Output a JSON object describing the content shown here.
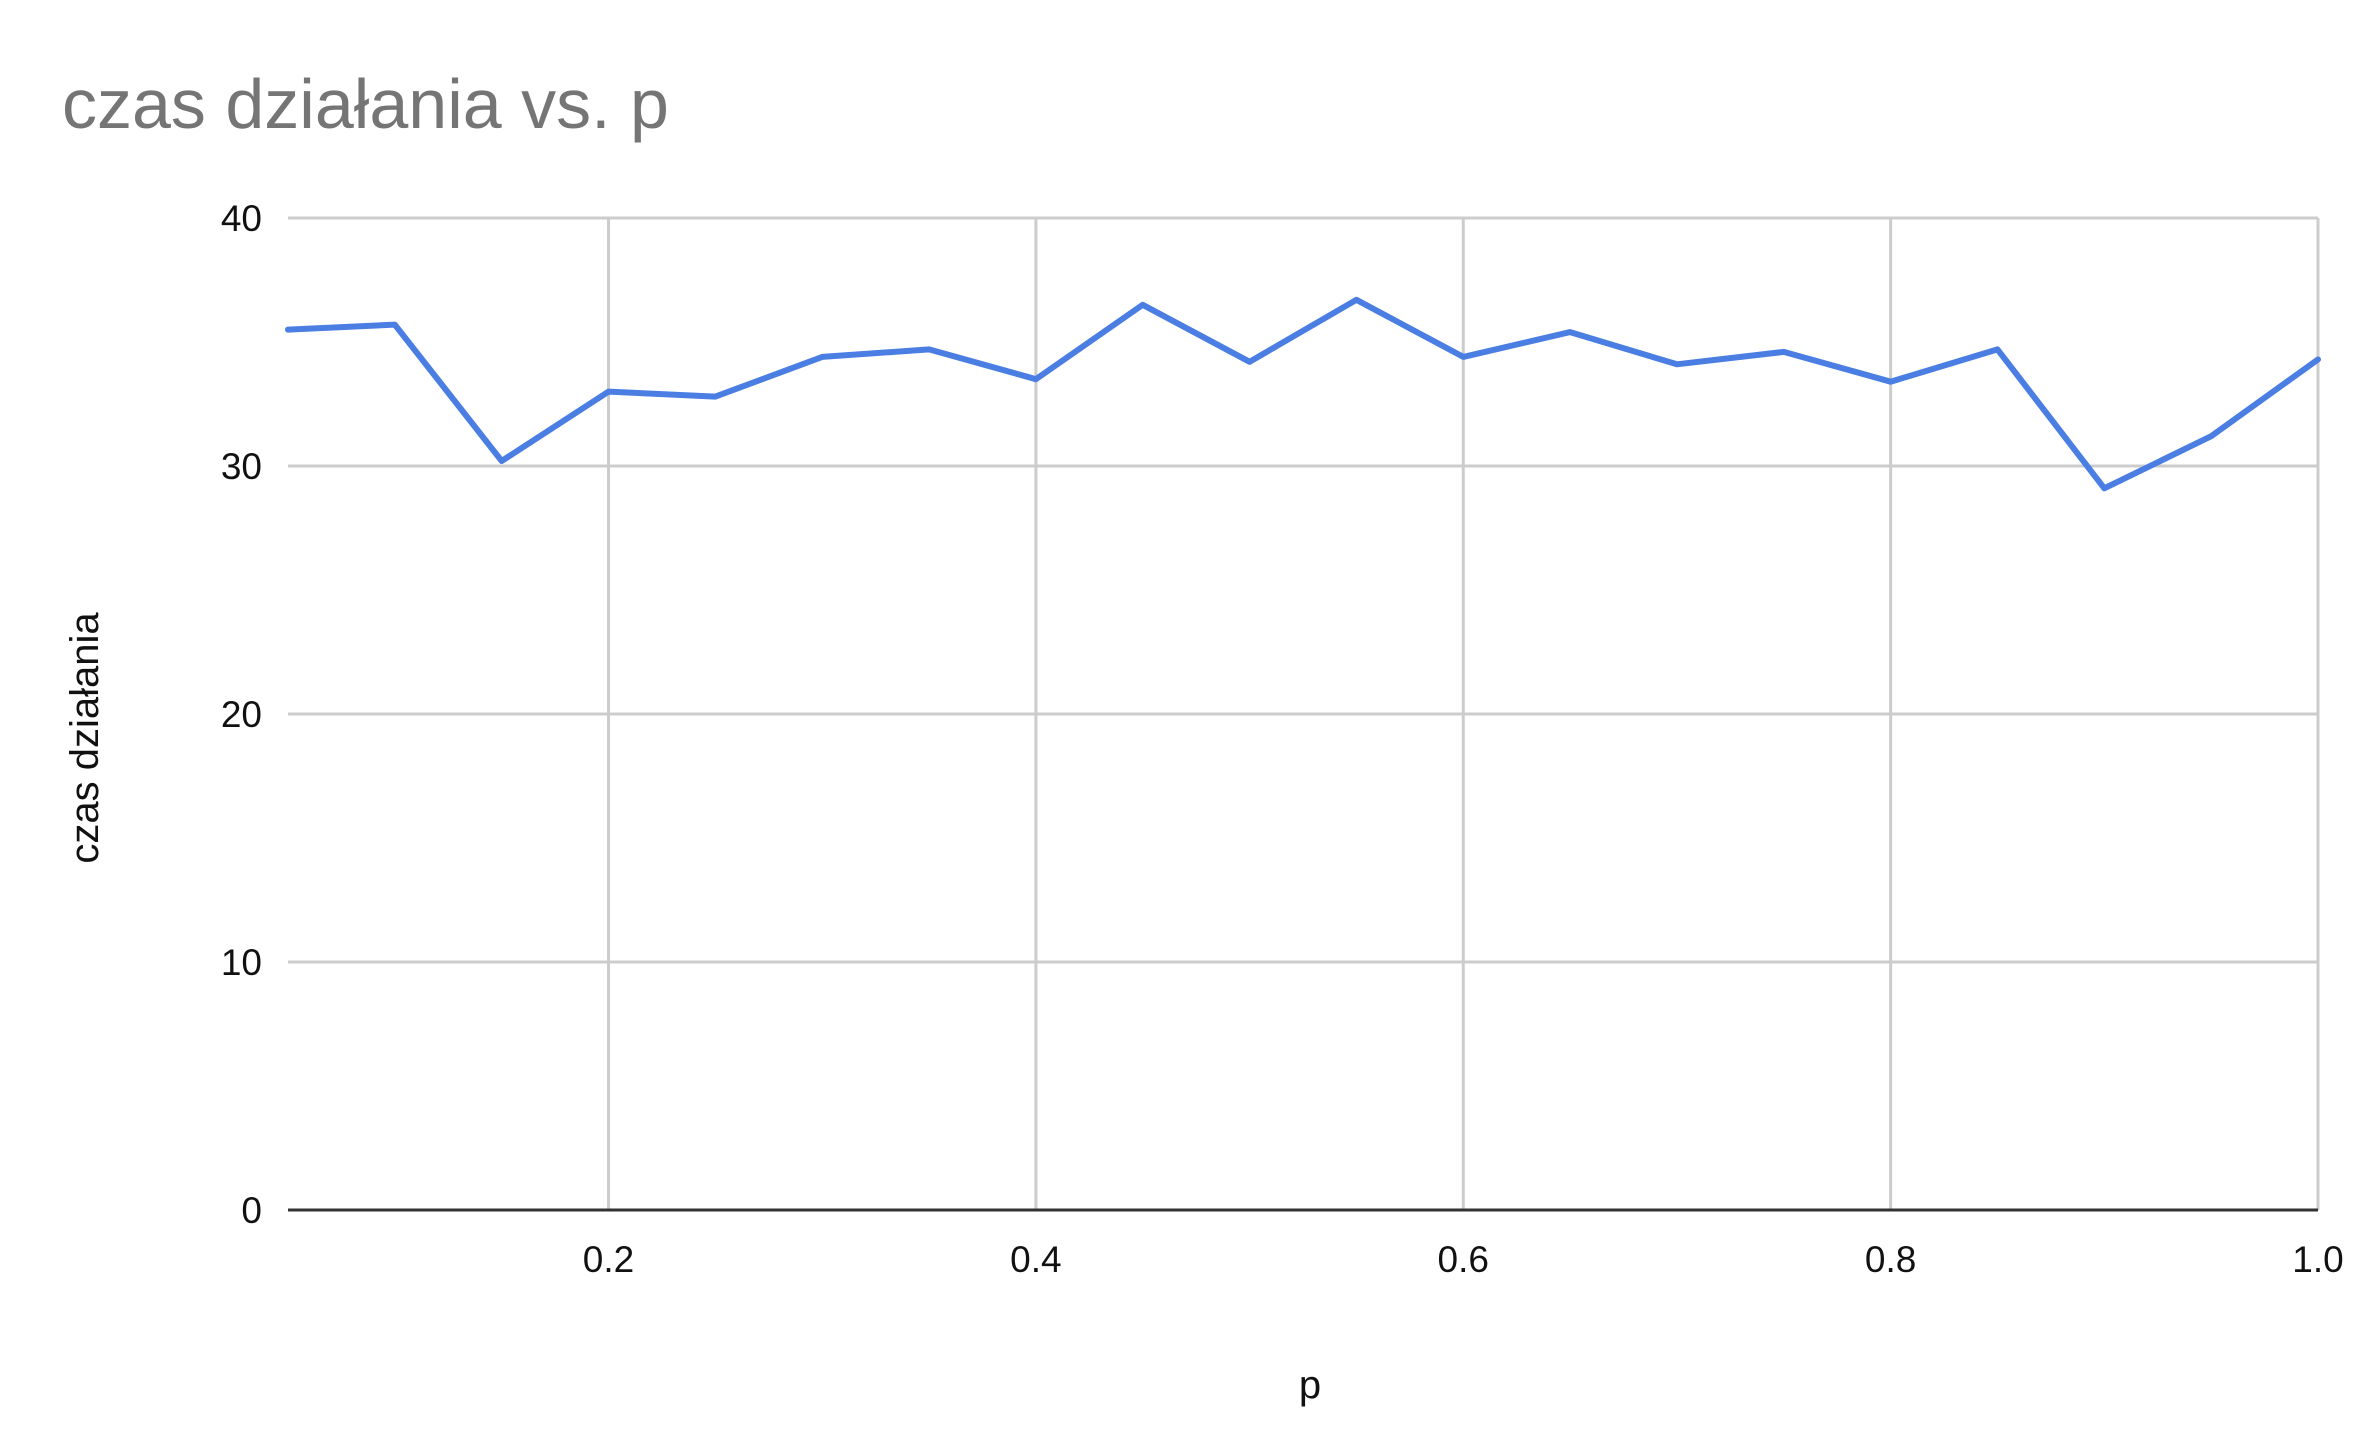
{
  "chart_data": {
    "type": "line",
    "title": "czas działania vs. p",
    "xlabel": "p",
    "ylabel": "czas działania",
    "xlim": [
      0.05,
      1.0
    ],
    "ylim": [
      0,
      40
    ],
    "x_ticks": [
      0.2,
      0.4,
      0.6,
      0.8,
      1.0
    ],
    "x_tick_labels": [
      "0.2",
      "0.4",
      "0.6",
      "0.8",
      "1.0"
    ],
    "y_ticks": [
      0,
      10,
      20,
      30,
      40
    ],
    "y_tick_labels": [
      "0",
      "10",
      "20",
      "30",
      "40"
    ],
    "grid": true,
    "legend": "none",
    "series": [
      {
        "color": "#4a7ee3",
        "x": [
          0.05,
          0.1,
          0.15,
          0.2,
          0.25,
          0.3,
          0.35,
          0.4,
          0.45,
          0.5,
          0.55,
          0.6,
          0.65,
          0.7,
          0.75,
          0.8,
          0.85,
          0.9,
          0.95,
          1.0
        ],
        "y": [
          35.5,
          35.7,
          30.2,
          33.0,
          32.8,
          34.4,
          34.7,
          33.5,
          36.5,
          34.2,
          36.7,
          34.4,
          35.4,
          34.1,
          34.6,
          33.4,
          34.7,
          29.1,
          31.2,
          34.3
        ]
      }
    ]
  }
}
